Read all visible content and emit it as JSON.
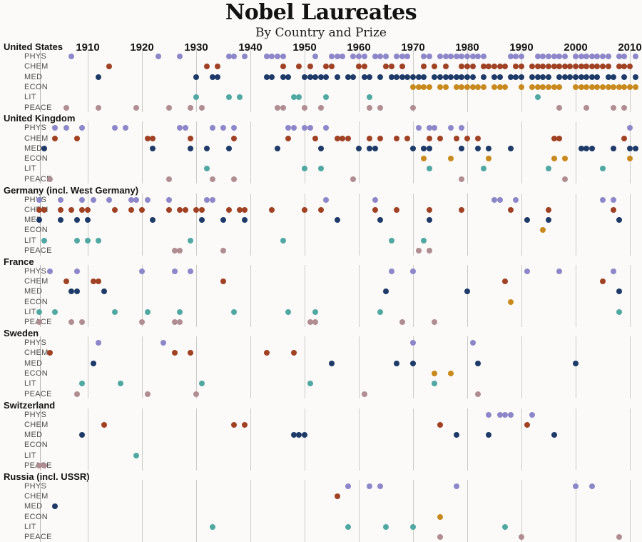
{
  "title": "Nobel Laureates",
  "subtitle": "By Country and Prize",
  "chart_data": {
    "type": "scatter",
    "subtype": "dot-strip-timeline",
    "title": "Nobel Laureates",
    "subtitle": "By Country and Prize",
    "xlabel": "Year",
    "x_axis": {
      "start": 1901,
      "end": 2012,
      "ticks": [
        1910,
        1920,
        1930,
        1940,
        1950,
        1960,
        1970,
        1980,
        1990,
        2000,
        2010
      ],
      "grid": true
    },
    "legend_position": "none",
    "prize_rows": [
      "PHYS",
      "CHEM",
      "MED",
      "ECON",
      "LIT",
      "PEACE"
    ],
    "prize_colors": {
      "PHYS": "#8d87ca",
      "CHEM": "#a04124",
      "MED": "#1d3a68",
      "ECON": "#c8891d",
      "LIT": "#50a8a2",
      "PEACE": "#b08d92"
    },
    "countries": [
      {
        "name": "United States",
        "laureate_years": {
          "PHYS": [
            1907,
            1923,
            1927,
            1936,
            1937,
            1939,
            1943,
            1944,
            1945,
            1946,
            1952,
            1955,
            1956,
            1957,
            1959,
            1960,
            1961,
            1963,
            1964,
            1965,
            1967,
            1968,
            1969,
            1972,
            1973,
            1975,
            1976,
            1977,
            1978,
            1979,
            1980,
            1981,
            1982,
            1983,
            1988,
            1989,
            1990,
            1993,
            1994,
            1995,
            1996,
            1997,
            1998,
            2000,
            2001,
            2002,
            2003,
            2004,
            2005,
            2006,
            2008,
            2009,
            2011
          ],
          "CHEM": [
            1914,
            1932,
            1934,
            1946,
            1949,
            1951,
            1954,
            1955,
            1960,
            1961,
            1965,
            1966,
            1968,
            1972,
            1974,
            1976,
            1979,
            1980,
            1981,
            1983,
            1984,
            1985,
            1986,
            1987,
            1989,
            1990,
            1992,
            1993,
            1994,
            1995,
            1996,
            1997,
            1998,
            1999,
            2000,
            2001,
            2002,
            2003,
            2004,
            2005,
            2006,
            2008,
            2009,
            2010
          ],
          "MED": [
            1912,
            1930,
            1933,
            1934,
            1943,
            1944,
            1946,
            1947,
            1950,
            1951,
            1952,
            1953,
            1954,
            1956,
            1958,
            1959,
            1961,
            1962,
            1964,
            1966,
            1967,
            1968,
            1969,
            1970,
            1971,
            1972,
            1974,
            1975,
            1976,
            1977,
            1978,
            1979,
            1980,
            1981,
            1983,
            1985,
            1986,
            1988,
            1989,
            1990,
            1992,
            1993,
            1994,
            1995,
            1997,
            1998,
            1999,
            2000,
            2001,
            2002,
            2003,
            2004,
            2006,
            2007,
            2009,
            2011
          ],
          "ECON": [
            1970,
            1971,
            1972,
            1973,
            1975,
            1976,
            1978,
            1979,
            1980,
            1981,
            1982,
            1983,
            1985,
            1986,
            1987,
            1990,
            1992,
            1993,
            1994,
            1995,
            1996,
            1997,
            2000,
            2001,
            2002,
            2003,
            2004,
            2005,
            2006,
            2007,
            2008,
            2009,
            2010,
            2011
          ],
          "LIT": [
            1930,
            1936,
            1938,
            1948,
            1949,
            1954,
            1962,
            1993
          ],
          "PEACE": [
            1906,
            1912,
            1919,
            1925,
            1929,
            1931,
            1945,
            1946,
            1950,
            1953,
            1962,
            1964,
            1970,
            1997,
            2002,
            2007,
            2009
          ]
        }
      },
      {
        "name": "United Kingdom",
        "laureate_years": {
          "PHYS": [
            1904,
            1906,
            1909,
            1915,
            1917,
            1927,
            1928,
            1933,
            1935,
            1937,
            1947,
            1948,
            1950,
            1951,
            1954,
            1971,
            1973,
            1974,
            1977,
            1979,
            2010
          ],
          "CHEM": [
            1904,
            1908,
            1921,
            1922,
            1929,
            1937,
            1947,
            1952,
            1956,
            1957,
            1958,
            1962,
            1964,
            1967,
            1969,
            1973,
            1975,
            1978,
            1980,
            1982,
            1996,
            1997,
            2009
          ],
          "MED": [
            1902,
            1922,
            1929,
            1932,
            1936,
            1945,
            1953,
            1960,
            1962,
            1963,
            1970,
            1972,
            1973,
            1979,
            1982,
            1984,
            1988,
            2001,
            2002,
            2003,
            2007,
            2010,
            2011
          ],
          "ECON": [
            1972,
            1977,
            1984,
            1996,
            1998,
            2010
          ],
          "LIT": [
            1932,
            1950,
            1953,
            1973,
            1983,
            1995,
            2005
          ],
          "PEACE": [
            1903,
            1925,
            1933,
            1937,
            1959,
            1979,
            1998
          ]
        }
      },
      {
        "name": "Germany (incl. West Germany)",
        "laureate_years": {
          "PHYS": [
            1901,
            1905,
            1909,
            1911,
            1914,
            1918,
            1919,
            1921,
            1925,
            1932,
            1933,
            1954,
            1963,
            1985,
            1986,
            1989,
            2005,
            2007
          ],
          "CHEM": [
            1901,
            1902,
            1905,
            1907,
            1909,
            1910,
            1915,
            1918,
            1920,
            1925,
            1927,
            1928,
            1930,
            1931,
            1936,
            1938,
            1939,
            1944,
            1950,
            1953,
            1963,
            1967,
            1973,
            1979,
            1988,
            1995,
            2007
          ],
          "MED": [
            1901,
            1905,
            1908,
            1910,
            1922,
            1931,
            1935,
            1939,
            1956,
            1964,
            1973,
            1991,
            1995,
            2008
          ],
          "ECON": [
            1994
          ],
          "LIT": [
            1902,
            1908,
            1910,
            1912,
            1929,
            1946,
            1966,
            1972
          ],
          "PEACE": [
            1926,
            1927,
            1935,
            1971,
            1973
          ]
        }
      },
      {
        "name": "France",
        "laureate_years": {
          "PHYS": [
            1903,
            1908,
            1920,
            1926,
            1929,
            1966,
            1970,
            1991,
            1997,
            2007
          ],
          "CHEM": [
            1906,
            1911,
            1912,
            1935,
            1987,
            2005
          ],
          "MED": [
            1907,
            1908,
            1913,
            1965,
            1980,
            2008
          ],
          "ECON": [
            1988
          ],
          "LIT": [
            1901,
            1904,
            1915,
            1921,
            1927,
            1937,
            1947,
            1952,
            1964,
            2008
          ],
          "PEACE": [
            1901,
            1907,
            1909,
            1920,
            1926,
            1927,
            1951,
            1952,
            1968,
            1974
          ]
        }
      },
      {
        "name": "Sweden",
        "laureate_years": {
          "PHYS": [
            1912,
            1924,
            1970,
            1981
          ],
          "CHEM": [
            1903,
            1926,
            1929,
            1943,
            1948
          ],
          "MED": [
            1911,
            1955,
            1967,
            1970,
            1982,
            2000
          ],
          "ECON": [
            1974,
            1977
          ],
          "LIT": [
            1909,
            1916,
            1931,
            1951,
            1974
          ],
          "PEACE": [
            1908,
            1921,
            1930,
            1961,
            1982
          ]
        }
      },
      {
        "name": "Switzerland",
        "laureate_years": {
          "PHYS": [
            1984,
            1986,
            1987,
            1988,
            1992
          ],
          "CHEM": [
            1913,
            1937,
            1939,
            1975,
            1991
          ],
          "MED": [
            1909,
            1948,
            1949,
            1950,
            1978,
            1984,
            1996
          ],
          "ECON": [],
          "LIT": [
            1919
          ],
          "PEACE": [
            1901,
            1902
          ]
        }
      },
      {
        "name": "Russia (incl. USSR)",
        "laureate_years": {
          "PHYS": [
            1958,
            1962,
            1964,
            1978,
            2000,
            2003
          ],
          "CHEM": [
            1956
          ],
          "MED": [
            1904
          ],
          "ECON": [
            1975
          ],
          "LIT": [
            1933,
            1958,
            1965,
            1970,
            1987
          ],
          "PEACE": [
            1975,
            1990,
            2008
          ]
        }
      }
    ]
  }
}
